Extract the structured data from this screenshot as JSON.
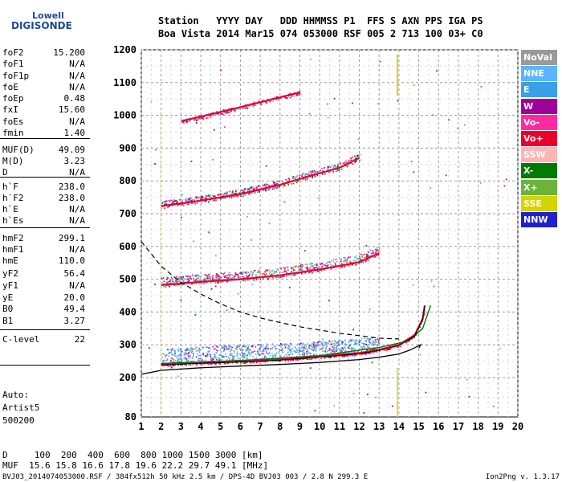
{
  "logo": {
    "line1": "Lowell",
    "line2": "DIGISONDE"
  },
  "header": {
    "row1": "Station   YYYY DAY   DDD HHMMSS P1  FFS S AXN PPS IGA PS",
    "row2": "Boa Vista 2014 Mar15 074 053000 RSF 005 2 713 100 03+ C0"
  },
  "params": [
    {
      "k": "foF2",
      "v": "15.200"
    },
    {
      "k": "foF1",
      "v": "N/A"
    },
    {
      "k": "foF1p",
      "v": "N/A"
    },
    {
      "k": "foE",
      "v": "N/A"
    },
    {
      "k": "foEp",
      "v": "0.48"
    },
    {
      "k": "fxI",
      "v": "15.60"
    },
    {
      "k": "foEs",
      "v": "N/A"
    },
    {
      "k": "fmin",
      "v": "1.40"
    },
    {
      "k": "MUF(D)",
      "v": "49.09"
    },
    {
      "k": "M(D)",
      "v": "3.23"
    },
    {
      "k": "D",
      "v": "N/A"
    },
    {
      "k": "h`F",
      "v": "238.0"
    },
    {
      "k": "h`F2",
      "v": "238.0"
    },
    {
      "k": "h`E",
      "v": "N/A"
    },
    {
      "k": "h`Es",
      "v": "N/A"
    },
    {
      "k": "hmF2",
      "v": "299.1"
    },
    {
      "k": "hmF1",
      "v": "N/A"
    },
    {
      "k": "hmE",
      "v": "110.0"
    },
    {
      "k": "yF2",
      "v": "56.4"
    },
    {
      "k": "yF1",
      "v": "N/A"
    },
    {
      "k": "yE",
      "v": "20.0"
    },
    {
      "k": "B0",
      "v": "49.4"
    },
    {
      "k": "B1",
      "v": "3.27"
    },
    {
      "k": "C-level",
      "v": "22"
    }
  ],
  "auto": {
    "l1": "Auto:",
    "l2": "Artist5",
    "l3": "500200"
  },
  "legend": [
    {
      "label": "NoVal",
      "color": "#999999"
    },
    {
      "label": "NNE",
      "color": "#5ab4ff"
    },
    {
      "label": "E",
      "color": "#3aa0e8"
    },
    {
      "label": "W",
      "color": "#a0009a"
    },
    {
      "label": "Vo-",
      "color": "#ff2aa0"
    },
    {
      "label": "Vo+",
      "color": "#e8002a"
    },
    {
      "label": "SSW",
      "color": "#ffb4b4"
    },
    {
      "label": "X-",
      "color": "#007a00"
    },
    {
      "label": "X+",
      "color": "#6ab43a"
    },
    {
      "label": "SSE",
      "color": "#d4d400"
    },
    {
      "label": "NNW",
      "color": "#2020d0"
    }
  ],
  "footer": {
    "d_row": "D     100  200  400  600  800 1000 1500 3000 [km]",
    "muf_row": "MUF  15.6 15.8 16.6 17.8 19.6 22.2 29.7 49.1 [MHz]",
    "file": "BVJ03_2014074053000.RSF / 384fx512h 50 kHz 2.5 km / DPS-4D BVJ03 003 / 2.8 N 299.3 E",
    "version": "Ion2Png v. 1.3.17"
  },
  "chart_data": {
    "type": "scatter",
    "xlim": [
      1,
      20
    ],
    "ylim": [
      80,
      1200
    ],
    "x_ticks": [
      1,
      2,
      3,
      4,
      5,
      6,
      7,
      8,
      9,
      10,
      11,
      12,
      13,
      14,
      15,
      16,
      17,
      18,
      19,
      20
    ],
    "y_ticks": [
      80,
      200,
      300,
      400,
      500,
      600,
      700,
      800,
      900,
      1000,
      1100,
      1200
    ],
    "grid": true,
    "legend_position": "right",
    "series": [
      {
        "name": "E",
        "values": [
          [
            2.0,
            262
          ],
          [
            3,
            270
          ],
          [
            4,
            272
          ],
          [
            5,
            275
          ],
          [
            6,
            278
          ],
          [
            7,
            280
          ],
          [
            8,
            282
          ],
          [
            9,
            285
          ],
          [
            10,
            288
          ],
          [
            11,
            292
          ],
          [
            12,
            298
          ],
          [
            13,
            305
          ]
        ]
      },
      {
        "name": "Vo+",
        "values": [
          [
            2.0,
            241
          ],
          [
            4,
            246
          ],
          [
            6,
            250
          ],
          [
            8,
            256
          ],
          [
            10,
            265
          ],
          [
            12,
            275
          ],
          [
            13,
            285
          ],
          [
            14,
            300
          ],
          [
            14.8,
            330
          ],
          [
            15.2,
            380
          ],
          [
            15.3,
            420
          ]
        ]
      },
      {
        "name": "Vo+ multiple 2",
        "values": [
          [
            2.0,
            482
          ],
          [
            4,
            492
          ],
          [
            6,
            500
          ],
          [
            8,
            512
          ],
          [
            10,
            530
          ],
          [
            12,
            552
          ],
          [
            13,
            580
          ]
        ]
      },
      {
        "name": "Vo+ multiple 3",
        "values": [
          [
            2.0,
            723
          ],
          [
            4,
            740
          ],
          [
            6,
            760
          ],
          [
            8,
            788
          ],
          [
            9.5,
            815
          ],
          [
            11,
            840
          ],
          [
            12,
            870
          ]
        ]
      },
      {
        "name": "Vo+ multiple 4",
        "values": [
          [
            3.0,
            982
          ],
          [
            5,
            1010
          ],
          [
            7,
            1040
          ],
          [
            9,
            1070
          ]
        ]
      },
      {
        "name": "X-",
        "values": [
          [
            2.0,
            243
          ],
          [
            6,
            252
          ],
          [
            10,
            267
          ],
          [
            13,
            292
          ],
          [
            14.5,
            312
          ],
          [
            15.2,
            350
          ],
          [
            15.6,
            420
          ]
        ]
      }
    ],
    "profile_curve": [
      [
        1,
        210
      ],
      [
        2,
        222
      ],
      [
        4,
        230
      ],
      [
        6,
        235
      ],
      [
        8,
        240
      ],
      [
        10,
        246
      ],
      [
        12,
        255
      ],
      [
        13,
        262
      ],
      [
        14,
        272
      ],
      [
        14.6,
        285
      ],
      [
        15.1,
        300
      ],
      [
        15.0,
        290
      ]
    ],
    "muf_curve": [
      [
        1,
        615
      ],
      [
        2,
        540
      ],
      [
        3,
        490
      ],
      [
        4,
        455
      ],
      [
        5,
        425
      ],
      [
        6,
        400
      ],
      [
        7,
        382
      ],
      [
        8,
        368
      ],
      [
        9,
        355
      ],
      [
        10,
        345
      ],
      [
        11,
        335
      ],
      [
        12,
        328
      ],
      [
        13,
        320
      ],
      [
        14,
        318
      ]
    ]
  }
}
